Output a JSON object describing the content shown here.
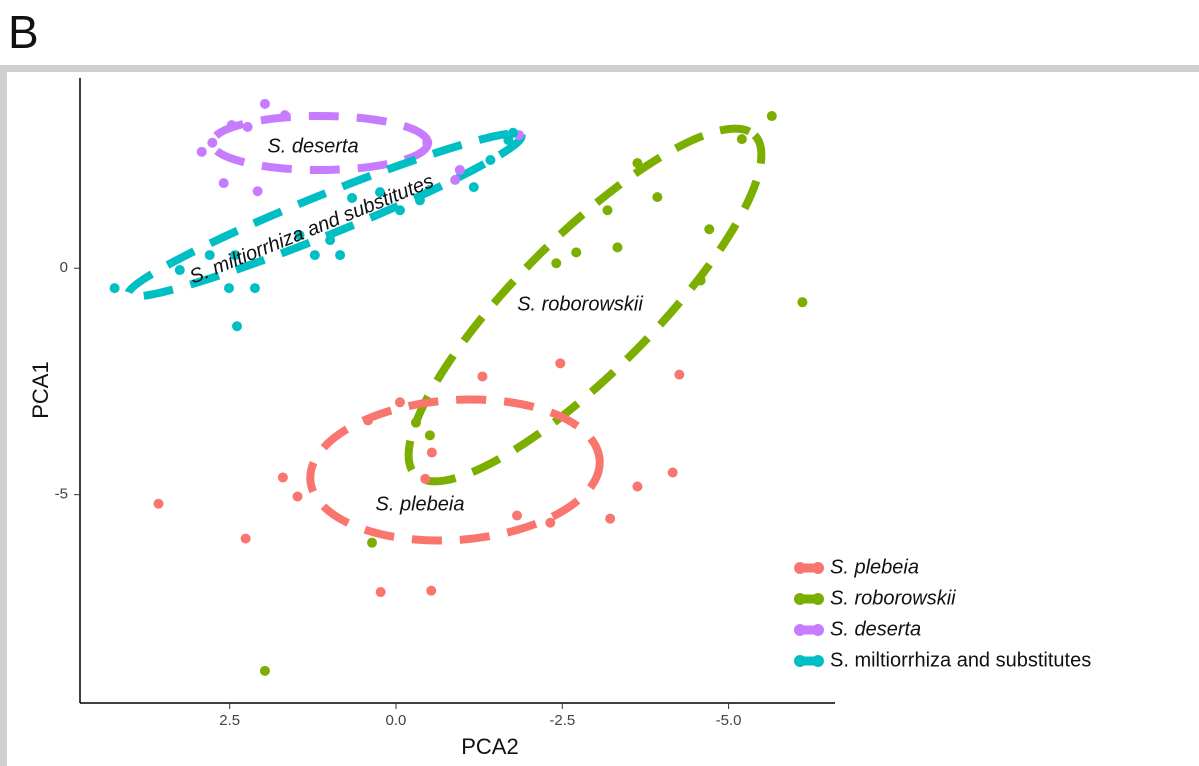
{
  "panel_label": "B",
  "chart_data": {
    "type": "scatter",
    "xlabel": "PCA2",
    "ylabel": "PCA1",
    "xlim": [
      4.75,
      -6.6
    ],
    "ylim": [
      -9.6,
      4.2
    ],
    "xticks": [
      {
        "value": 2.5,
        "label": "2.5"
      },
      {
        "value": 0,
        "label": "0.0"
      },
      {
        "value": -2.5,
        "label": "-2.5"
      },
      {
        "value": -5,
        "label": "-5.0"
      }
    ],
    "yticks": [
      0,
      -5
    ],
    "legend": "bottom-right",
    "annotations": [
      "S. deserta",
      "S. miltiorrhiza and substitutes",
      "S. roborowskii",
      "S. plebeia"
    ],
    "series": [
      {
        "name": "S. plebeia",
        "color": "#f8766d",
        "x": [
          3.57,
          2.26,
          1.7,
          1.48,
          0.42,
          0.23,
          -0.06,
          -0.44,
          -0.54,
          -0.53,
          -1.3,
          -1.82,
          -2.32,
          -2.47,
          -3.22,
          -3.63,
          -4.16,
          -4.26
        ],
        "values": [
          -5.2,
          -5.97,
          -4.62,
          -5.04,
          -3.36,
          -7.15,
          -2.96,
          -4.65,
          -4.07,
          -7.12,
          -2.39,
          -5.46,
          -5.62,
          -2.1,
          -5.53,
          -4.82,
          -4.51,
          -2.35
        ]
      },
      {
        "name": "S. roborowskii",
        "color": "#7cae00",
        "x": [
          -5.65,
          -5.2,
          -3.63,
          -3.93,
          -3.18,
          -3.33,
          -2.71,
          -2.41,
          -4.71,
          -4.58,
          -6.11,
          -0.3,
          -0.51,
          0.36,
          1.97
        ],
        "values": [
          3.36,
          2.85,
          2.32,
          1.57,
          1.28,
          0.46,
          0.35,
          0.11,
          0.86,
          -0.27,
          -0.75,
          -3.41,
          -3.69,
          -6.06,
          -8.89
        ]
      },
      {
        "name": "S. deserta",
        "color": "#c77cff",
        "x": [
          1.97,
          2.23,
          2.47,
          2.76,
          2.92,
          2.59,
          2.08,
          1.67,
          -0.47,
          -1.85,
          -0.96,
          -0.89
        ],
        "values": [
          3.63,
          3.12,
          3.16,
          2.77,
          2.57,
          1.88,
          1.7,
          3.38,
          2.77,
          2.94,
          2.17,
          1.95
        ]
      },
      {
        "name": "S. miltiorrhiza and substitutes",
        "color": "#00bfc4",
        "x": [
          4.23,
          2.39,
          2.12,
          2.51,
          3.25,
          2.8,
          2.42,
          1.45,
          1.22,
          0.84,
          0.66,
          0.24,
          -0.06,
          -0.36,
          -0.51,
          -1.17,
          -1.42,
          -1.69,
          -1.76,
          0.99
        ],
        "values": [
          -0.44,
          -1.28,
          -0.44,
          -0.44,
          -0.04,
          0.29,
          0.29,
          0.73,
          0.29,
          0.29,
          1.55,
          1.68,
          1.28,
          1.5,
          1.73,
          1.79,
          2.39,
          2.83,
          2.99,
          0.62
        ]
      }
    ]
  }
}
